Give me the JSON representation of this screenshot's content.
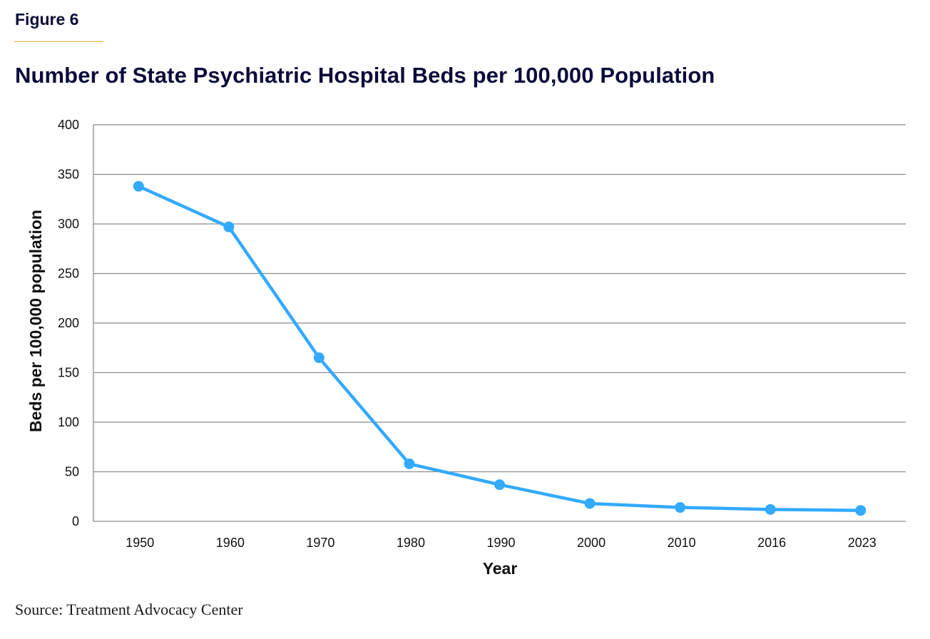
{
  "figure_label": "Figure 6",
  "source": "Source: Treatment Advocacy Center",
  "colors": {
    "line": "#33aaff",
    "title": "#0b0b3a",
    "accent_rule": "#e8a23a",
    "grid": "#8c8c8c"
  },
  "chart_data": {
    "type": "line",
    "title": "Number of State Psychiatric Hospital Beds per 100,000 Population",
    "xlabel": "Year",
    "ylabel": "Beds per 100,000 population",
    "categories": [
      "1950",
      "1960",
      "1970",
      "1980",
      "1990",
      "2000",
      "2010",
      "2016",
      "2023"
    ],
    "series": [
      {
        "name": "Beds per 100,000 population",
        "values": [
          338,
          297,
          165,
          58,
          37,
          18,
          14,
          12,
          11
        ]
      }
    ],
    "ylim": [
      0,
      400
    ],
    "yticks": [
      0,
      50,
      100,
      150,
      200,
      250,
      300,
      350,
      400
    ],
    "grid": "horizontal",
    "markers": true,
    "legend": "none"
  }
}
